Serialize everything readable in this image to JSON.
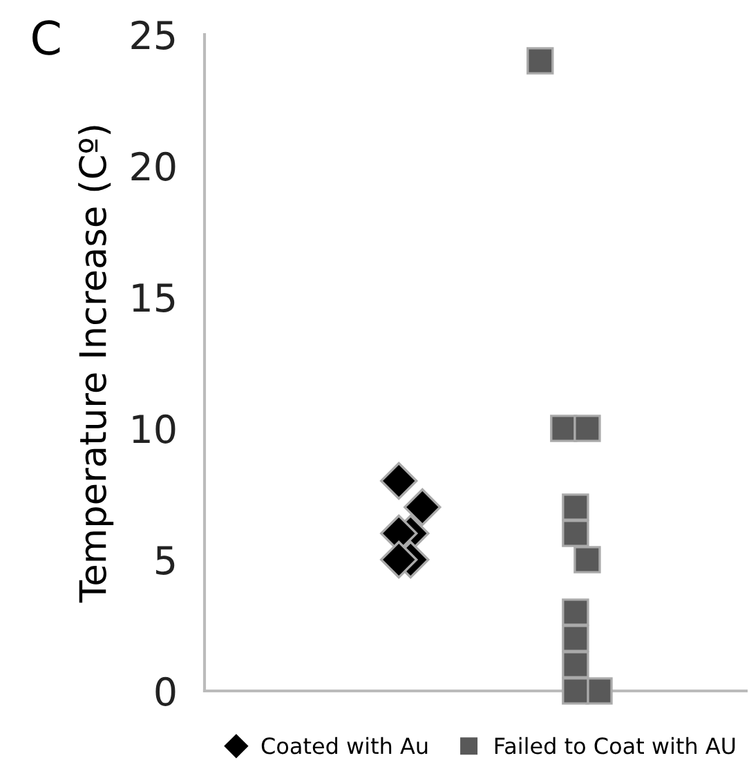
{
  "chart_data": {
    "type": "scatter",
    "ylabel": "Temperature Increase (Cº)",
    "annotations": [
      "C"
    ],
    "categories": [
      null,
      null,
      null,
      null,
      null,
      null,
      null,
      null,
      null,
      null,
      null,
      null,
      null,
      null,
      null,
      null,
      null,
      null,
      null,
      null,
      null,
      null,
      null,
      null,
      null,
      null,
      null,
      null,
      null,
      null,
      null,
      null,
      null,
      null,
      null,
      null,
      null,
      null,
      null,
      null,
      null,
      null,
      null,
      null,
      null,
      null
    ],
    "ylim": [
      0,
      25
    ],
    "yticks": [
      0,
      5,
      10,
      15,
      20,
      25
    ],
    "tick_labels": "y",
    "grid": false,
    "legend": "bottom",
    "series": [
      {
        "name": "Coated with Au",
        "color": "#000000",
        "marker": "diamond",
        "values": [
          null,
          null,
          null,
          null,
          null,
          null,
          null,
          null,
          null,
          null,
          null,
          null,
          null,
          null,
          null,
          null,
          8,
          6,
          7,
          null,
          null,
          null,
          null,
          null,
          null,
          null,
          null,
          null,
          null,
          null,
          null,
          null,
          null,
          null,
          null,
          null,
          null,
          null,
          null,
          null,
          null,
          null,
          null,
          null,
          null,
          null
        ]
      },
      {
        "color": "#000000",
        "marker": "diamond",
        "values": [
          null,
          null,
          null,
          null,
          null,
          null,
          null,
          null,
          null,
          null,
          null,
          null,
          null,
          null,
          null,
          null,
          6,
          5,
          null,
          null,
          null,
          null,
          null,
          null,
          null,
          null,
          null,
          null,
          null,
          null,
          null,
          null,
          null,
          null,
          null,
          null,
          null,
          null,
          null,
          null,
          null,
          null,
          null,
          null,
          null,
          null
        ]
      },
      {
        "color": "#000000",
        "marker": "diamond",
        "values": [
          null,
          null,
          null,
          null,
          null,
          null,
          null,
          null,
          null,
          null,
          null,
          null,
          null,
          null,
          null,
          null,
          5,
          null,
          null,
          null,
          null,
          null,
          null,
          null,
          null,
          null,
          null,
          null,
          null,
          null,
          null,
          null,
          null,
          null,
          null,
          null,
          null,
          null,
          null,
          null,
          null,
          null,
          null,
          null,
          null,
          null
        ]
      },
      {
        "name": "Failed to Coat with AU",
        "color": "#595959",
        "marker": "square",
        "values": [
          null,
          null,
          null,
          null,
          null,
          null,
          null,
          null,
          null,
          null,
          null,
          null,
          null,
          null,
          null,
          null,
          null,
          null,
          null,
          null,
          null,
          null,
          null,
          null,
          null,
          null,
          null,
          null,
          24,
          null,
          10,
          7,
          10,
          0,
          null,
          null,
          null,
          null,
          null,
          null,
          null,
          null,
          null,
          null,
          null,
          null
        ]
      },
      {
        "color": "#595959",
        "marker": "square",
        "values": [
          null,
          null,
          null,
          null,
          null,
          null,
          null,
          null,
          null,
          null,
          null,
          null,
          null,
          null,
          null,
          null,
          null,
          null,
          null,
          null,
          null,
          null,
          null,
          null,
          null,
          null,
          null,
          null,
          null,
          null,
          null,
          6,
          5,
          null,
          null,
          null,
          null,
          null,
          null,
          null,
          null,
          null,
          null,
          null,
          null,
          null
        ]
      },
      {
        "color": "#595959",
        "marker": "square",
        "values": [
          null,
          null,
          null,
          null,
          null,
          null,
          null,
          null,
          null,
          null,
          null,
          null,
          null,
          null,
          null,
          null,
          null,
          null,
          null,
          null,
          null,
          null,
          null,
          null,
          null,
          null,
          null,
          null,
          null,
          null,
          null,
          3,
          null,
          null,
          null,
          null,
          null,
          null,
          null,
          null,
          null,
          null,
          null,
          null,
          null,
          null
        ]
      },
      {
        "color": "#595959",
        "marker": "square",
        "values": [
          null,
          null,
          null,
          null,
          null,
          null,
          null,
          null,
          null,
          null,
          null,
          null,
          null,
          null,
          null,
          null,
          null,
          null,
          null,
          null,
          null,
          null,
          null,
          null,
          null,
          null,
          null,
          null,
          null,
          null,
          null,
          2,
          null,
          null,
          null,
          null,
          null,
          null,
          null,
          null,
          null,
          null,
          null,
          null,
          null,
          null
        ]
      },
      {
        "color": "#595959",
        "marker": "square",
        "values": [
          null,
          null,
          null,
          null,
          null,
          null,
          null,
          null,
          null,
          null,
          null,
          null,
          null,
          null,
          null,
          null,
          null,
          null,
          null,
          null,
          null,
          null,
          null,
          null,
          null,
          null,
          null,
          null,
          null,
          null,
          null,
          1,
          null,
          null,
          null,
          null,
          null,
          null,
          null,
          null,
          null,
          null,
          null,
          null,
          null,
          null
        ]
      },
      {
        "color": "#595959",
        "marker": "square",
        "values": [
          null,
          null,
          null,
          null,
          null,
          null,
          null,
          null,
          null,
          null,
          null,
          null,
          null,
          null,
          null,
          null,
          null,
          null,
          null,
          null,
          null,
          null,
          null,
          null,
          null,
          null,
          null,
          null,
          null,
          null,
          null,
          0,
          null,
          null,
          null,
          null,
          null,
          null,
          null,
          null,
          null,
          null,
          null,
          null,
          null,
          null
        ]
      }
    ]
  }
}
